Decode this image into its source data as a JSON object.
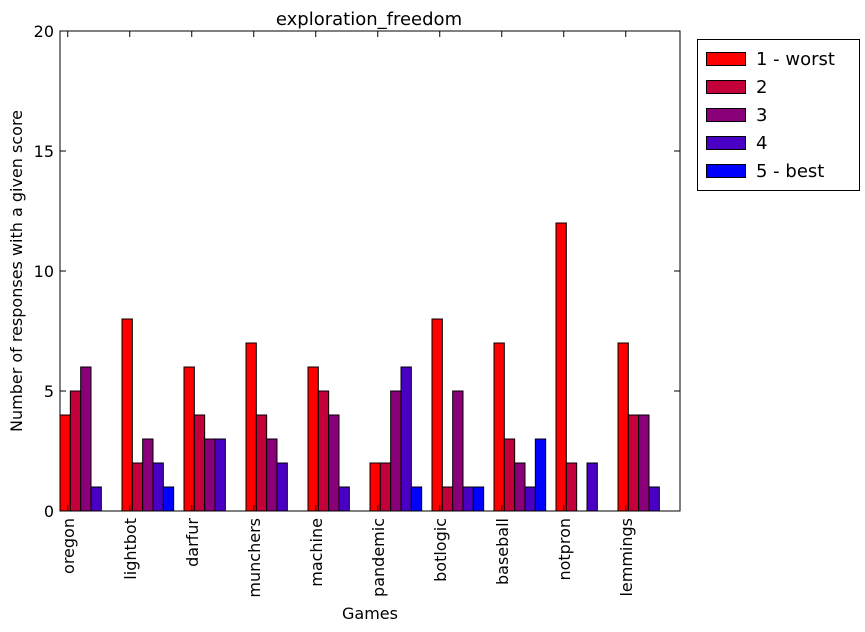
{
  "chart_data": {
    "type": "bar",
    "title": "exploration_freedom",
    "xlabel": "Games",
    "ylabel": "Number of responses with a given score",
    "ylim": [
      0,
      20
    ],
    "yticks": [
      0,
      5,
      10,
      15,
      20
    ],
    "categories": [
      "oregon",
      "lightbot",
      "darfur",
      "munchers",
      "machine",
      "pandemic",
      "botlogic",
      "baseball",
      "notpron",
      "lemmings"
    ],
    "series": [
      {
        "name": "1 - worst",
        "color": "#ff0000",
        "values": [
          4,
          8,
          6,
          7,
          6,
          2,
          8,
          7,
          12,
          7
        ]
      },
      {
        "name": "2",
        "color": "#c4003b",
        "values": [
          5,
          2,
          4,
          4,
          5,
          2,
          1,
          3,
          2,
          4
        ]
      },
      {
        "name": "3",
        "color": "#8a0078",
        "values": [
          6,
          3,
          3,
          3,
          4,
          5,
          5,
          2,
          0,
          4
        ]
      },
      {
        "name": "4",
        "color": "#4a00c4",
        "values": [
          1,
          2,
          3,
          2,
          1,
          6,
          1,
          1,
          2,
          1
        ]
      },
      {
        "name": "5 - best",
        "color": "#0000ff",
        "values": [
          0,
          1,
          0,
          0,
          0,
          1,
          1,
          3,
          0,
          0
        ]
      }
    ],
    "grid": false,
    "legend_position": "outside-top-right"
  }
}
